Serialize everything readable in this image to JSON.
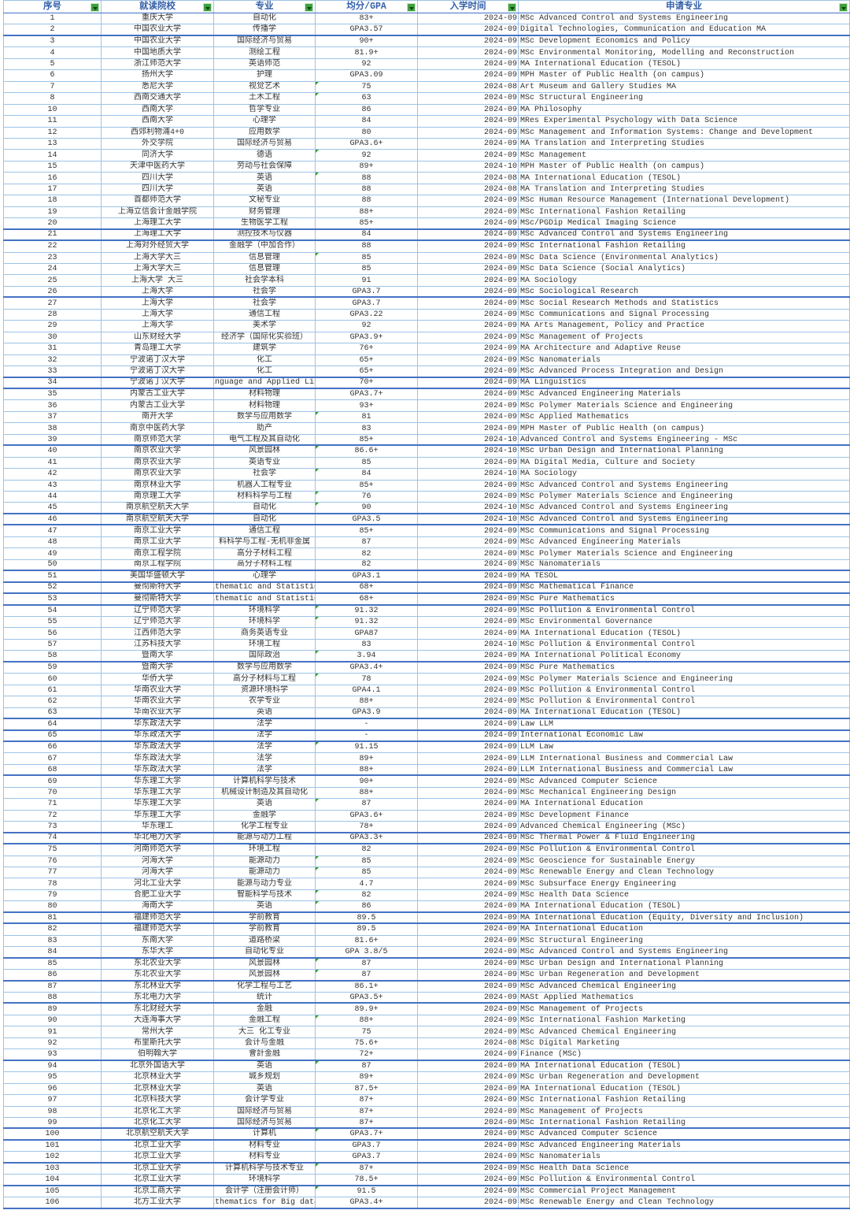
{
  "app": {
    "type": "spreadsheet-table"
  },
  "colors": {
    "header_text": "#3560A8",
    "grid_thin": "#9DC3E6",
    "grid_thick": "#4472C4",
    "filter_green": "#3EA13E",
    "flag_green": "#2F9E2F",
    "cell_text": "#333333"
  },
  "table": {
    "headers": [
      {
        "label": "序号"
      },
      {
        "label": "就读院校"
      },
      {
        "label": "专业"
      },
      {
        "label": "均分/GPA"
      },
      {
        "label": "入学时间"
      },
      {
        "label": "申请专业"
      }
    ],
    "flagged_gpa_rows": [
      7,
      8,
      14,
      16,
      23,
      37,
      40,
      42,
      44,
      45,
      54,
      55,
      58,
      60,
      66,
      71,
      76,
      77,
      79,
      80,
      85,
      86,
      90,
      94,
      100,
      103,
      105
    ],
    "thick_border_after": [
      2,
      20,
      21,
      26,
      33,
      34,
      39,
      45,
      46,
      50,
      51,
      52,
      53,
      58,
      63,
      64,
      65,
      68,
      73,
      74,
      80,
      81,
      84,
      86,
      88,
      93,
      99,
      100,
      102,
      104,
      106
    ],
    "rows": [
      [
        "1",
        "重庆大学",
        "自动化",
        "83+",
        "2024-09",
        "MSc Advanced Control and Systems Engineering"
      ],
      [
        "2",
        "中国农业大学",
        "传播学",
        "GPA3.57",
        "2024-09",
        "Digital Technologies, Communication and Education MA"
      ],
      [
        "3",
        "中国农业大学",
        "国际经济与贸易",
        "90+",
        "2024-09",
        "MSc Development Economics and Policy"
      ],
      [
        "4",
        "中国地质大学",
        "测绘工程",
        "81.9+",
        "2024-09",
        "MSc Environmental Monitoring, Modelling and Reconstruction"
      ],
      [
        "5",
        "浙江师范大学",
        "英语师范",
        "92",
        "2024-09",
        "MA International Education (TESOL)"
      ],
      [
        "6",
        "扬州大学",
        "护理",
        "GPA3.09",
        "2024-09",
        "MPH Master of Public Health (on campus)"
      ],
      [
        "7",
        "悉尼大学",
        "视觉艺术",
        "75",
        "2024-08",
        "Art Museum and Gallery Studies MA"
      ],
      [
        "8",
        "西南交通大学",
        "土木工程",
        "63",
        "2024-09",
        "MSc Structural Engineering"
      ],
      [
        "10",
        "西南大学",
        "哲学专业",
        "86",
        "2024-09",
        "MA Philosophy"
      ],
      [
        "11",
        "西南大学",
        "心理学",
        "84",
        "2024-09",
        "MRes Experimental Psychology with Data Science"
      ],
      [
        "12",
        "西郊利物浦4+0",
        "应用数学",
        "80",
        "2024-09",
        "MSc Management and Information Systems: Change and Development"
      ],
      [
        "13",
        "外交学院",
        "国际经济与贸易",
        "GPA3.6+",
        "2024-09",
        "MA Translation and Interpreting Studies"
      ],
      [
        "14",
        "同济大学",
        "德语",
        "92",
        "2024-09",
        "MSc Management"
      ],
      [
        "15",
        "天津中医药大学",
        "劳动与社会保障",
        "89+",
        "2024-10",
        "MPH Master of Public Health (on campus)"
      ],
      [
        "16",
        "四川大学",
        "英语",
        "88",
        "2024-08",
        "MA International Education (TESOL)"
      ],
      [
        "17",
        "四川大学",
        "英语",
        "88",
        "2024-08",
        "MA Translation and Interpreting Studies"
      ],
      [
        "18",
        "首都师范大学",
        "文秘专业",
        "88",
        "2024-09",
        "MSc Human Resource Management (International Development)"
      ],
      [
        "19",
        "上海立信会计金融学院",
        "财务管理",
        "88+",
        "2024-09",
        "MSc International Fashion Retailing"
      ],
      [
        "20",
        "上海理工大学",
        "生物医学工程",
        "85+",
        "2024-09",
        "MSc/PGDip Medical Imaging Science"
      ],
      [
        "21",
        "上海理工大学",
        "测控技术与仪器",
        "84",
        "2024-09",
        "MSc Advanced Control and Systems Engineering"
      ],
      [
        "22",
        "上海对外经贸大学",
        "金融学（中加合作）",
        "88",
        "2024-09",
        "MSc International Fashion Retailing"
      ],
      [
        "23",
        "上海大学大三",
        "信息管理",
        "85",
        "2024-09",
        "MSc Data Science (Environmental Analytics)"
      ],
      [
        "24",
        "上海大学大三",
        "信息管理",
        "85",
        "2024-09",
        "MSc Data Science (Social Analytics)"
      ],
      [
        "25",
        "上海大学 大三",
        "社会学本科",
        "91",
        "2024-09",
        "MA Sociology"
      ],
      [
        "26",
        "上海大学",
        "社会学",
        "GPA3.7",
        "2024-09",
        "MSc Sociological Research"
      ],
      [
        "27",
        "上海大学",
        "社会学",
        "GPA3.7",
        "2024-09",
        "MSc Social Research Methods and Statistics"
      ],
      [
        "28",
        "上海大学",
        "通信工程",
        "GPA3.22",
        "2024-09",
        "MSc Communications and Signal Processing"
      ],
      [
        "29",
        "上海大学",
        "美术学",
        "92",
        "2024-09",
        "MA Arts Management, Policy and Practice"
      ],
      [
        "30",
        "山东财经大学",
        "经济学（国际化实验班）",
        "GPA3.9+",
        "2024-09",
        "MSc Management of Projects"
      ],
      [
        "31",
        "青岛理工大学",
        "建筑学",
        "76+",
        "2024-09",
        "MA Architecture and Adaptive Reuse"
      ],
      [
        "32",
        "宁波诺丁汉大学",
        "化工",
        "65+",
        "2024-09",
        "MSc Nanomaterials"
      ],
      [
        "33",
        "宁波诺丁汉大学",
        "化工",
        "65+",
        "2024-09",
        "MSc Advanced Process Integration and Design"
      ],
      [
        "34",
        "宁波诺丁汉大学",
        "anguage and Applied Lin",
        "70+",
        "2024-09",
        "MA Linguistics"
      ],
      [
        "35",
        "内蒙古工业大学",
        "材料物理",
        "GPA3.7+",
        "2024-09",
        "MSc Advanced Engineering Materials"
      ],
      [
        "36",
        "内蒙古工业大学",
        "材料物理",
        "93+",
        "2024-09",
        "MSc Polymer Materials Science and Engineering"
      ],
      [
        "37",
        "南开大学",
        "数学与应用数学",
        "81",
        "2024-09",
        "MSc Applied Mathematics"
      ],
      [
        "38",
        "南京中医药大学",
        "助产",
        "83",
        "2024-09",
        "MPH Master of Public Health (on campus)"
      ],
      [
        "39",
        "南京师范大学",
        "电气工程及其自动化",
        "85+",
        "2024-10",
        "Advanced Control and Systems Engineering - MSc"
      ],
      [
        "40",
        "南京农业大学",
        "风景园林",
        "86.6+",
        "2024-10",
        "MSc Urban Design and International Planning"
      ],
      [
        "41",
        "南京农业大学",
        "英语专业",
        "85",
        "2024-09",
        "MA Digital Media, Culture and Society"
      ],
      [
        "42",
        "南京农业大学",
        "社会学",
        "84",
        "2024-10",
        "MA Sociology"
      ],
      [
        "43",
        "南京林业大学",
        "机器人工程专业",
        "85+",
        "2024-09",
        "MSc Advanced Control and Systems Engineering"
      ],
      [
        "44",
        "南京理工大学",
        "材料科学与工程",
        "76",
        "2024-09",
        "MSc Polymer Materials Science and Engineering"
      ],
      [
        "45",
        "南京航空航天大学",
        "自动化",
        "90",
        "2024-10",
        "MSc Advanced Control and Systems Engineering"
      ],
      [
        "46",
        "南京航空航天大学",
        "自动化",
        "GPA3.5",
        "2024-10",
        "MSc Advanced Control and Systems Engineering"
      ],
      [
        "47",
        "南京工业大学",
        "通信工程",
        "85+",
        "2024-09",
        "MSc Communications and Signal Processing"
      ],
      [
        "48",
        "南京工业大学",
        "料科学与工程-无机非金属",
        "87",
        "2024-09",
        "MSc Advanced Engineering Materials"
      ],
      [
        "49",
        "南京工程学院",
        "高分子材料工程",
        "82",
        "2024-09",
        "MSc Polymer Materials Science and Engineering"
      ],
      [
        "50",
        "南京工程学院",
        "高分子材料工程",
        "82",
        "2024-09",
        "MSc Nanomaterials"
      ],
      [
        "51",
        "美国华盛顿大学",
        "心理学",
        "GPA3.1",
        "2024-09",
        "MA TESOL"
      ],
      [
        "52",
        "曼彻斯特大学",
        "athematic and Statistic",
        "68+",
        "2024-09",
        "MSc Mathematical Finance"
      ],
      [
        "53",
        "曼彻斯特大学",
        "athematic and Statistic",
        "68+",
        "2024-09",
        "MSc Pure Mathematics"
      ],
      [
        "54",
        "辽宁师范大学",
        "环境科学",
        "91.32",
        "2024-09",
        "MSc Pollution & Environmental Control"
      ],
      [
        "55",
        "辽宁师范大学",
        "环境科学",
        "91.32",
        "2024-09",
        "MSc Environmental Governance"
      ],
      [
        "56",
        "江西师范大学",
        "商务英语专业",
        "GPA87",
        "2024-09",
        "MA International Education (TESOL)"
      ],
      [
        "57",
        "江苏科技大学",
        "环境工程",
        "83",
        "2024-10",
        "MSc Pollution & Environmental Control"
      ],
      [
        "58",
        "暨南大学",
        "国际政治",
        "3.94",
        "2024-09",
        "MA International Political Economy"
      ],
      [
        "59",
        "暨南大学",
        "数学与应用数学",
        "GPA3.4+",
        "2024-09",
        "MSc Pure Mathematics"
      ],
      [
        "60",
        "华侨大学",
        "高分子材料与工程",
        "78",
        "2024-09",
        "MSc Polymer Materials Science and Engineering"
      ],
      [
        "61",
        "华南农业大学",
        "资源环境科学",
        "GPA4.1",
        "2024-09",
        "MSc Pollution & Environmental Control"
      ],
      [
        "62",
        "华南农业大学",
        "农学专业",
        "88+",
        "2024-09",
        "MSc Pollution & Environmental Control"
      ],
      [
        "63",
        "华南农业大学",
        "英语",
        "GPA3.9",
        "2024-09",
        "MA International Education (TESOL)"
      ],
      [
        "64",
        "华东政法大学",
        "法学",
        "-",
        "2024-09",
        "Law LLM"
      ],
      [
        "65",
        "华东政法大学",
        "法学",
        "-",
        "2024-09",
        "International Economic Law"
      ],
      [
        "66",
        "华东政法大学",
        "法学",
        "91.15",
        "2024-09",
        "LLM Law"
      ],
      [
        "67",
        "华东政法大学",
        "法学",
        "89+",
        "2024-09",
        "LLM International Business and Commercial Law"
      ],
      [
        "68",
        "华东政法大学",
        "法学",
        "88+",
        "2024-09",
        "LLM International Business and Commercial Law"
      ],
      [
        "69",
        "华东理工大学",
        "计算机科学与技术",
        "90+",
        "2024-09",
        "MSc Advanced Computer Science"
      ],
      [
        "70",
        "华东理工大学",
        "机械设计制造及其自动化",
        "88+",
        "2024-09",
        "MSc Mechanical Engineering Design"
      ],
      [
        "71",
        "华东理工大学",
        "英语",
        "87",
        "2024-09",
        "MA International Education"
      ],
      [
        "72",
        "华东理工大学",
        "金融学",
        "GPA3.6+",
        "2024-09",
        "MSc Development Finance"
      ],
      [
        "73",
        "华东理工",
        "化学工程专业",
        "78+",
        "2024-09",
        "Advanced Chemical Engineering (MSc)"
      ],
      [
        "74",
        "华北电力大学",
        "能源与动力工程",
        "GPA3.3+",
        "2024-09",
        "MSc Thermal Power & Fluid Engineering"
      ],
      [
        "75",
        "河南师范大学",
        "环境工程",
        "82",
        "2024-09",
        "MSc Pollution & Environmental Control"
      ],
      [
        "76",
        "河海大学",
        "能源动力",
        "85",
        "2024-09",
        "MSc Geoscience for Sustainable Energy"
      ],
      [
        "77",
        "河海大学",
        "能源动力",
        "85",
        "2024-09",
        "MSc Renewable Energy and Clean Technology"
      ],
      [
        "78",
        "河北工业大学",
        "能源与动力专业",
        "4.7",
        "2024-09",
        "MSc Subsurface Energy Engineering"
      ],
      [
        "79",
        "合肥工业大学",
        "智能科学与技术",
        "82",
        "2024-09",
        "MSc Health Data Science"
      ],
      [
        "80",
        "海南大学",
        "英语",
        "86",
        "2024-09",
        "MA International Education (TESOL)"
      ],
      [
        "81",
        "福建师范大学",
        "学前教育",
        "89.5",
        "2024-09",
        "MA International Education (Equity, Diversity and Inclusion)"
      ],
      [
        "82",
        "福建师范大学",
        "学前教育",
        "89.5",
        "2024-09",
        "MA International Education"
      ],
      [
        "83",
        "东南大学",
        "道路桥梁",
        "81.6+",
        "2024-09",
        "MSc Structural Engineering"
      ],
      [
        "84",
        "东华大学",
        "自动化专业",
        "GPA 3.8/5",
        "2024-09",
        "MSc Advanced Control and Systems Engineering"
      ],
      [
        "85",
        "东北农业大学",
        "风景园林",
        "87",
        "2024-09",
        "MSc Urban Design and International Planning"
      ],
      [
        "86",
        "东北农业大学",
        "风景园林",
        "87",
        "2024-09",
        "MSc Urban Regeneration and Development"
      ],
      [
        "87",
        "东北林业大学",
        "化学工程与工艺",
        "86.1+",
        "2024-09",
        "MSc Advanced Chemical Engineering"
      ],
      [
        "88",
        "东北电力大学",
        "统计",
        "GPA3.5+",
        "2024-09",
        "MASt Applied Mathematics"
      ],
      [
        "89",
        "东北财经大学",
        "金融",
        "89.9+",
        "2024-09",
        "MSc Management of Projects"
      ],
      [
        "90",
        "大连海事大学",
        "金融工程",
        "88+",
        "2024-09",
        "MSc International Fashion Marketing"
      ],
      [
        "91",
        "常州大学",
        "大三 化工专业",
        "75",
        "2024-09",
        "MSc Advanced Chemical Engineering"
      ],
      [
        "92",
        "布里斯托大学",
        "会计与金融",
        "75.6+",
        "2024-08",
        "MSc Digital Marketing"
      ],
      [
        "93",
        "伯明翰大学",
        "會計金融",
        "72+",
        "2024-09",
        "Finance (MSc)"
      ],
      [
        "94",
        "北京外国语大学",
        "英语",
        "87",
        "2024-09",
        "MA International Education (TESOL)"
      ],
      [
        "95",
        "北京林业大学",
        "城乡规划",
        "89+",
        "2024-09",
        "MSc Urban Regeneration and Development"
      ],
      [
        "96",
        "北京林业大学",
        "英语",
        "87.5+",
        "2024-09",
        "MA International Education (TESOL)"
      ],
      [
        "97",
        "北京科技大学",
        "会计学专业",
        "87+",
        "2024-09",
        "MSc International Fashion Retailing"
      ],
      [
        "98",
        "北京化工大学",
        "国际经济与贸易",
        "87+",
        "2024-09",
        "MSc Management of Projects"
      ],
      [
        "99",
        "北京化工大学",
        "国际经济与贸易",
        "87+",
        "2024-09",
        "MSc International Fashion Retailing"
      ],
      [
        "100",
        "北京航空航天大学",
        "计算机",
        "GPA3.7+",
        "2024-09",
        "MSc Advanced Computer Science"
      ],
      [
        "101",
        "北京工业大学",
        "材料专业",
        "GPA3.7",
        "2024-09",
        "MSc Advanced Engineering Materials"
      ],
      [
        "102",
        "北京工业大学",
        "材料专业",
        "GPA3.7",
        "2024-09",
        "MSc Nanomaterials"
      ],
      [
        "103",
        "北京工业大学",
        "计算机科学与技术专业",
        "87+",
        "2024-09",
        "MSc Health Data Science"
      ],
      [
        "104",
        "北京工业大学",
        "环境科学",
        "78.5+",
        "2024-09",
        "MSc Pollution & Environmental Control"
      ],
      [
        "105",
        "北京工商大学",
        "会计学（注册会计师）",
        "91.5",
        "2024-09",
        "MSc Commercial Project Management"
      ],
      [
        "106",
        "北方工业大学",
        "athematics for Big data",
        "GPA3.4+",
        "2024-09",
        "MSc Renewable Energy and Clean Technology"
      ]
    ]
  }
}
